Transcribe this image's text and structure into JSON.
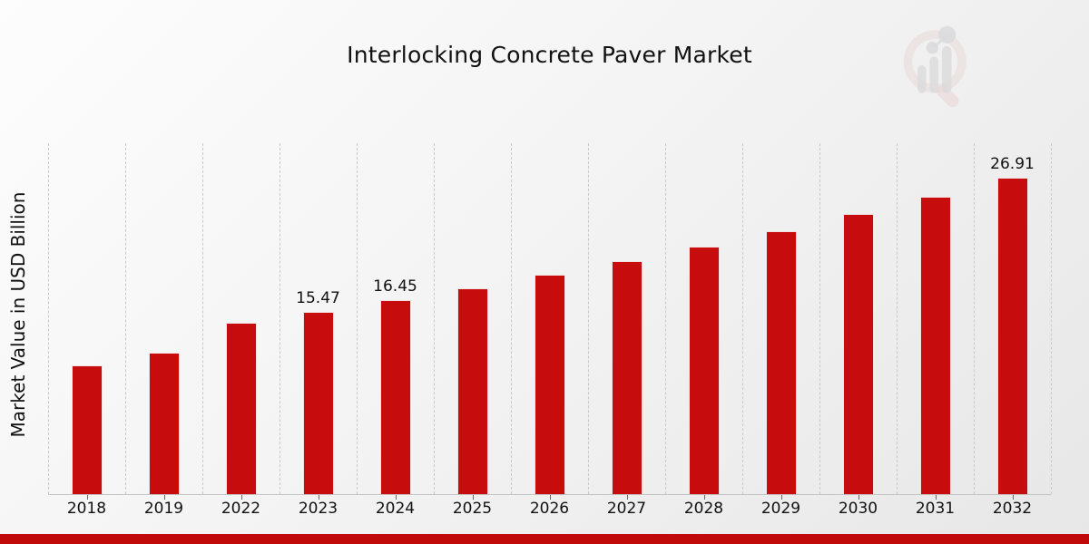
{
  "header": {
    "title": "Interlocking Concrete Paver Market"
  },
  "colors": {
    "bar_red": "#c60c0c",
    "footer_accent_red": "#c00909",
    "gridline_gray": "#c9c9c9",
    "text_black": "#111111",
    "watermark_ring_pink": "#dfb9b9",
    "watermark_gray": "#c0c0c4"
  },
  "watermark": {
    "icon": "magnifier-with-bar-chart-logo"
  },
  "chart_data": {
    "type": "bar",
    "title": "Interlocking Concrete Paver Market",
    "ylabel": "Market Value in USD Billion",
    "categories": [
      "2018",
      "2019",
      "2022",
      "2023",
      "2024",
      "2025",
      "2026",
      "2027",
      "2028",
      "2029",
      "2030",
      "2031",
      "2032"
    ],
    "values": [
      10.9,
      12.05,
      14.55,
      15.47,
      16.45,
      17.49,
      18.6,
      19.78,
      21.03,
      22.36,
      23.78,
      25.29,
      26.91
    ],
    "data_labels": [
      "",
      "",
      "",
      "15.47",
      "16.45",
      "",
      "",
      "",
      "",
      "",
      "",
      "",
      "26.91"
    ],
    "ylim": [
      0,
      29.8
    ],
    "grid": "vertical-dashed",
    "legend": "none",
    "bar_color": "#c60c0c",
    "units": "USD Billion"
  }
}
